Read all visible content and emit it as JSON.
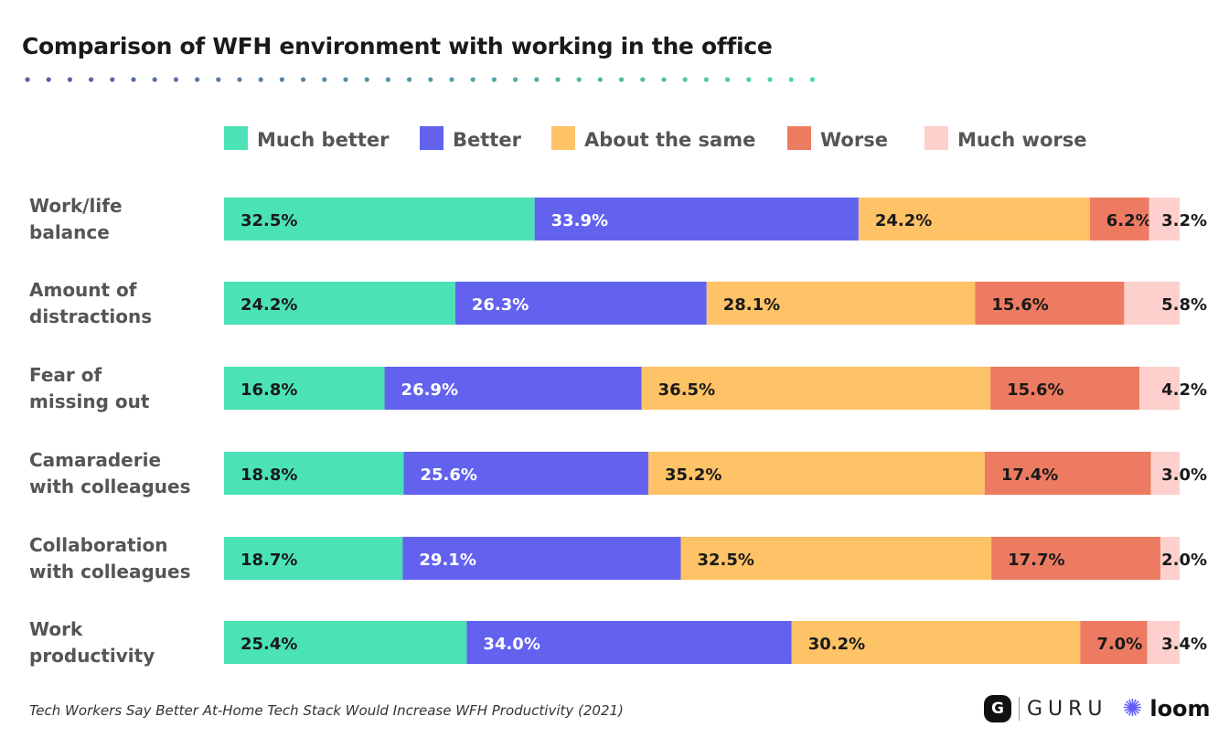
{
  "chart_data": {
    "type": "bar",
    "orientation": "horizontal",
    "stacked": true,
    "title": "Comparison of WFH environment with working in the office",
    "categories": [
      "Work/life balance",
      "Amount of distractions",
      "Fear of missing out",
      "Camaraderie with colleagues",
      "Collaboration with colleagues",
      "Work productivity"
    ],
    "category_lines": [
      [
        "Work/life",
        "balance"
      ],
      [
        "Amount of",
        "distractions"
      ],
      [
        "Fear of",
        "missing out"
      ],
      [
        "Camaraderie",
        "with colleagues"
      ],
      [
        "Collaboration",
        "with colleagues"
      ],
      [
        "Work",
        "productivity"
      ]
    ],
    "series": [
      {
        "name": "Much better",
        "color": "#4be3b5",
        "values": [
          32.5,
          24.2,
          16.8,
          18.8,
          18.7,
          25.4
        ]
      },
      {
        "name": "Better",
        "color": "#6262ef",
        "values": [
          33.9,
          26.3,
          26.9,
          25.6,
          29.1,
          34.0
        ]
      },
      {
        "name": "About the same",
        "color": "#fec267",
        "values": [
          24.2,
          28.1,
          36.5,
          35.2,
          32.5,
          30.2
        ]
      },
      {
        "name": "Worse",
        "color": "#ed7b62",
        "values": [
          6.2,
          15.6,
          15.6,
          17.4,
          17.7,
          7.0
        ]
      },
      {
        "name": "Much worse",
        "color": "#fdd0cd",
        "values": [
          3.2,
          5.8,
          4.2,
          3.0,
          2.0,
          3.4
        ]
      }
    ],
    "unit": "%",
    "legend": "top",
    "grid": false
  },
  "source": "Tech Workers Say Better At-Home Tech Stack Would Increase WFH Productivity (2021)",
  "logos": {
    "guru": "GURU",
    "loom": "loom"
  }
}
